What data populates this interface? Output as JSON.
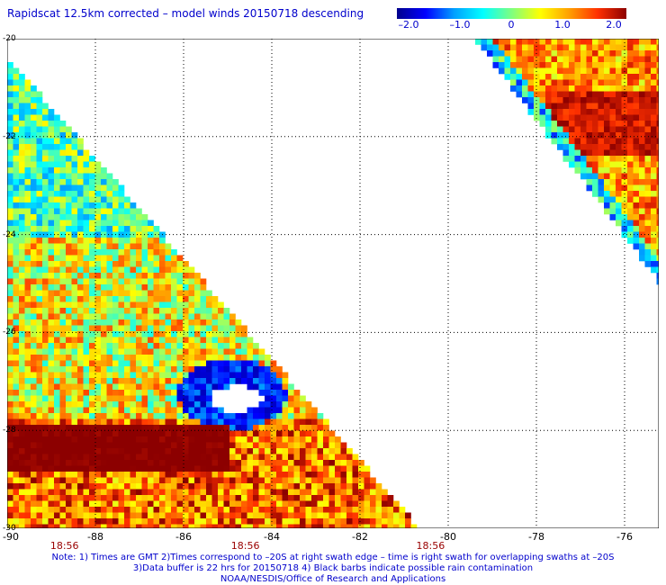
{
  "title": "Rapidscat 12.5km corrected – model winds 20150718 descending",
  "colorbar": {
    "min": -2.0,
    "max": 2.0,
    "ticks": [
      "–2.0",
      "–1.0",
      "0",
      "1.0",
      "2.0"
    ],
    "colors": [
      "#00008c",
      "#0000ff",
      "#00a0ff",
      "#00ffff",
      "#7fff7f",
      "#ffff00",
      "#ffa000",
      "#ff3000",
      "#8c0000"
    ]
  },
  "map": {
    "lon_range": [
      -90,
      -75
    ],
    "lat_range": [
      -30,
      -20
    ],
    "lat_labels": [
      "-20",
      "-22",
      "-24",
      "-26",
      "-28",
      "-30"
    ],
    "lon_labels": [
      "-90",
      "-88",
      "-86",
      "-84",
      "-82",
      "-80",
      "-78",
      "-76"
    ],
    "time_labels": [
      "18:56",
      "18:56",
      "18:56"
    ],
    "grid": true,
    "gridline_color": "#000000"
  },
  "notes": {
    "line1": "Note: 1) Times are GMT 2)Times correspond to –20S at right swath edge – time is right swath for overlapping swaths at –20S",
    "line2": "3)Data buffer is 22 hrs for 20150718 4) Black barbs indicate possible rain contamination",
    "line3": "NOAA/NESDIS/Office of Research and Applications"
  }
}
